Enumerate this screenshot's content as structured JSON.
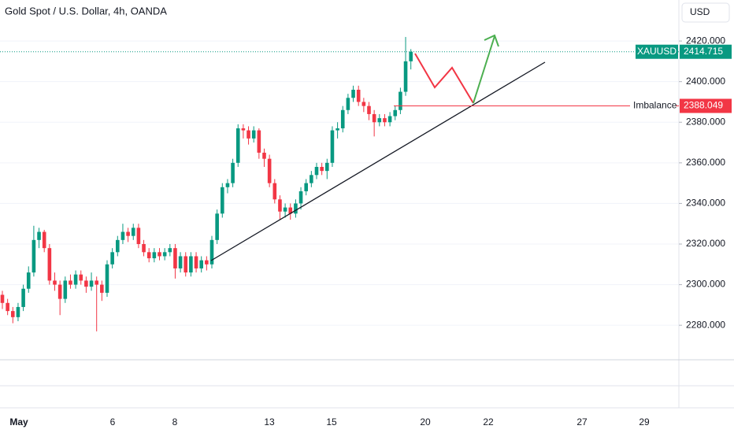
{
  "chart_data": {
    "type": "candlestick",
    "title": "Gold Spot / U.S. Dollar, 4h, OANDA",
    "currency": "USD",
    "up_color": "#089981",
    "down_color": "#f23645",
    "open": [
      2295,
      2291,
      2287,
      2284,
      2289,
      2298,
      2306,
      2322,
      2326,
      2318,
      2302,
      2300,
      2293,
      2302,
      2300,
      2305,
      2302,
      2299,
      2302,
      2300,
      2296,
      2310,
      2316,
      2322,
      2326,
      2324,
      2328,
      2320,
      2316,
      2313,
      2316,
      2314,
      2316,
      2318,
      2308,
      2314,
      2306,
      2314,
      2308,
      2312,
      2310,
      2322,
      2335,
      2348,
      2350,
      2360,
      2377,
      2376,
      2372,
      2376,
      2365,
      2362,
      2350,
      2342,
      2336,
      2338,
      2335,
      2340,
      2346,
      2350,
      2354,
      2358,
      2356,
      2360,
      2376,
      2377,
      2386,
      2392,
      2396,
      2390,
      2388,
      2384,
      2380,
      2382,
      2380,
      2383,
      2386,
      2395,
      2410
    ],
    "high": [
      2297,
      2293,
      2289,
      2291,
      2300,
      2309,
      2329,
      2328,
      2327,
      2320,
      2306,
      2302,
      2304,
      2305,
      2307,
      2307,
      2304,
      2306,
      2304,
      2302,
      2312,
      2318,
      2324,
      2330,
      2328,
      2330,
      2330,
      2322,
      2318,
      2318,
      2318,
      2318,
      2320,
      2320,
      2316,
      2316,
      2316,
      2316,
      2314,
      2314,
      2324,
      2337,
      2350,
      2352,
      2362,
      2379,
      2379,
      2378,
      2378,
      2377,
      2367,
      2364,
      2352,
      2344,
      2340,
      2340,
      2342,
      2348,
      2352,
      2356,
      2360,
      2360,
      2362,
      2378,
      2380,
      2388,
      2394,
      2398,
      2398,
      2392,
      2390,
      2386,
      2384,
      2384,
      2385,
      2388,
      2397,
      2422,
      2416
    ],
    "low": [
      2288,
      2285,
      2281,
      2282,
      2287,
      2296,
      2304,
      2318,
      2316,
      2300,
      2297,
      2285,
      2291,
      2298,
      2298,
      2300,
      2296,
      2297,
      2277,
      2292,
      2294,
      2308,
      2314,
      2320,
      2321,
      2322,
      2318,
      2314,
      2311,
      2311,
      2312,
      2312,
      2314,
      2303,
      2306,
      2304,
      2304,
      2306,
      2306,
      2307,
      2308,
      2320,
      2333,
      2345,
      2348,
      2358,
      2372,
      2369,
      2370,
      2362,
      2358,
      2348,
      2340,
      2332,
      2333,
      2332,
      2333,
      2337,
      2344,
      2348,
      2352,
      2354,
      2352,
      2358,
      2372,
      2375,
      2384,
      2390,
      2388,
      2385,
      2381,
      2373,
      2378,
      2378,
      2378,
      2381,
      2384,
      2393,
      2406
    ],
    "close": [
      2291,
      2287,
      2284,
      2289,
      2298,
      2306,
      2322,
      2326,
      2318,
      2302,
      2300,
      2293,
      2302,
      2300,
      2305,
      2302,
      2299,
      2302,
      2300,
      2296,
      2310,
      2316,
      2322,
      2326,
      2324,
      2328,
      2320,
      2316,
      2313,
      2316,
      2314,
      2316,
      2318,
      2308,
      2314,
      2306,
      2314,
      2308,
      2312,
      2310,
      2322,
      2335,
      2348,
      2350,
      2360,
      2377,
      2376,
      2372,
      2376,
      2365,
      2362,
      2350,
      2342,
      2336,
      2338,
      2335,
      2340,
      2346,
      2350,
      2354,
      2358,
      2356,
      2360,
      2376,
      2377,
      2386,
      2392,
      2396,
      2390,
      2388,
      2384,
      2380,
      2382,
      2380,
      2383,
      2386,
      2395,
      2410,
      2414.715
    ],
    "x_labels": [
      "May",
      "6",
      "8",
      "13",
      "15",
      "20",
      "22",
      "27",
      "29"
    ],
    "ylim": [
      2263,
      2440.2
    ],
    "yticks": [
      {
        "value": 2280,
        "label": "2280.000"
      },
      {
        "value": 2300,
        "label": "2300.000"
      },
      {
        "value": 2320,
        "label": "2320.000"
      },
      {
        "value": 2340,
        "label": "2340.000"
      },
      {
        "value": 2360,
        "label": "2360.000"
      },
      {
        "value": 2380,
        "label": "2380.000"
      },
      {
        "value": 2400,
        "label": "2400.000"
      },
      {
        "value": 2420,
        "label": "2420.000"
      }
    ],
    "last_price": {
      "symbol": "XAUUSD",
      "value": 2414.715,
      "color": "#089981"
    },
    "imbalance": {
      "label": "Imbalance",
      "value": 2388.049,
      "color": "#f23645"
    }
  }
}
